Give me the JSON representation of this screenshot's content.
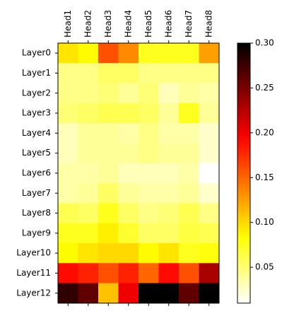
{
  "chart_data": {
    "type": "heatmap",
    "colormap": "hot_r",
    "x_categories": [
      "Head1",
      "Head2",
      "Head3",
      "Head4",
      "Head5",
      "Head6",
      "Head7",
      "Head8"
    ],
    "y_categories": [
      "Layer0",
      "Layer1",
      "Layer2",
      "Layer3",
      "Layer4",
      "Layer5",
      "Layer6",
      "Layer7",
      "Layer8",
      "Layer9",
      "Layer10",
      "Layer11",
      "Layer12"
    ],
    "values": [
      [
        0.095,
        0.085,
        0.16,
        0.135,
        0.075,
        0.075,
        0.075,
        0.125
      ],
      [
        0.045,
        0.045,
        0.055,
        0.055,
        0.045,
        0.045,
        0.045,
        0.045
      ],
      [
        0.045,
        0.045,
        0.05,
        0.04,
        0.05,
        0.03,
        0.04,
        0.035
      ],
      [
        0.05,
        0.055,
        0.06,
        0.06,
        0.055,
        0.04,
        0.075,
        0.04
      ],
      [
        0.03,
        0.04,
        0.04,
        0.035,
        0.045,
        0.035,
        0.035,
        0.025
      ],
      [
        0.03,
        0.04,
        0.04,
        0.04,
        0.045,
        0.04,
        0.04,
        0.025
      ],
      [
        0.035,
        0.035,
        0.04,
        0.03,
        0.03,
        0.03,
        0.035,
        0.01
      ],
      [
        0.035,
        0.04,
        0.055,
        0.04,
        0.035,
        0.035,
        0.04,
        0.025
      ],
      [
        0.06,
        0.055,
        0.075,
        0.055,
        0.045,
        0.05,
        0.06,
        0.045
      ],
      [
        0.075,
        0.075,
        0.09,
        0.07,
        0.055,
        0.055,
        0.065,
        0.06
      ],
      [
        0.085,
        0.095,
        0.1,
        0.1,
        0.085,
        0.095,
        0.075,
        0.08
      ],
      [
        0.19,
        0.18,
        0.16,
        0.18,
        0.15,
        0.19,
        0.16,
        0.23
      ],
      [
        0.28,
        0.26,
        0.11,
        0.2,
        0.3,
        0.3,
        0.26,
        0.3
      ]
    ],
    "vmin": 0.01,
    "vmax": 0.3,
    "colorbar_ticks": [
      0.05,
      0.1,
      0.15,
      0.2,
      0.25,
      0.3
    ],
    "colorbar_tick_labels": [
      "0.05",
      "0.10",
      "0.15",
      "0.20",
      "0.25",
      "0.30"
    ],
    "x_tick_position": "top",
    "grid": false
  }
}
